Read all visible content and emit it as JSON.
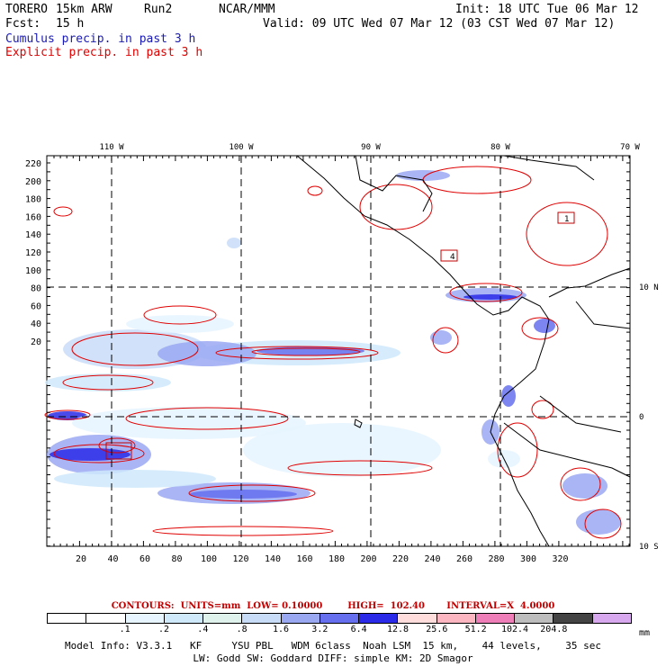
{
  "header": {
    "model": "TORERO",
    "grid": "15km ARW",
    "run": "Run2",
    "org": "NCAR/MMM",
    "init": "Init: 18 UTC Tue 06 Mar 12",
    "fcst_label": "Fcst:",
    "fcst_value": "15 h",
    "valid": "Valid: 09 UTC Wed 07 Mar 12 (03 CST Wed 07 Mar 12)"
  },
  "legend": {
    "cumulus": "Cumulus precip. in past 3 h",
    "explicit": "Explicit precip. in past 3 h"
  },
  "map": {
    "lon_labels": [
      "110 W",
      "100 W",
      "90 W",
      "80 W",
      "70 W"
    ],
    "lat_labels": [
      "10 N",
      "0",
      "10 S"
    ],
    "y_ticks": [
      "220",
      "200",
      "180",
      "160",
      "140",
      "120",
      "100",
      "80",
      "60",
      "40",
      "20"
    ],
    "x_ticks": [
      "20",
      "40",
      "60",
      "80",
      "100",
      "120",
      "140",
      "160",
      "180",
      "200",
      "220",
      "240",
      "260",
      "280",
      "300",
      "320"
    ],
    "box_labels": [
      "4",
      "1"
    ]
  },
  "contours_line": "CONTOURS:  UNITS=mm  LOW= 0.10000        HIGH=  102.40       INTERVAL=X  4.0000",
  "colorbar": {
    "colors": [
      "#ffffff",
      "#ffffff",
      "#e6f5ff",
      "#cfe9fb",
      "#e0f2ec",
      "#c8dcf8",
      "#9aa8f2",
      "#6670ee",
      "#2a2ae8",
      "#ffdddd",
      "#fbb6c2",
      "#ee7eb8",
      "#bdbdbd",
      "#444444",
      "#d8a8ee"
    ],
    "labels": [
      ".1",
      ".2",
      ".4",
      ".8",
      "1.6",
      "3.2",
      "6.4",
      "12.8",
      "25.6",
      "51.2",
      "102.4",
      "204.8"
    ],
    "unit": "mm"
  },
  "model_info": {
    "line1": "Model Info: V3.3.1   KF     YSU PBL   WDM 6class  Noah LSM  15 km,    44 levels,    35 sec",
    "line2": "LW: Godd SW: Goddard DIFF: simple KM: 2D Smagor"
  }
}
